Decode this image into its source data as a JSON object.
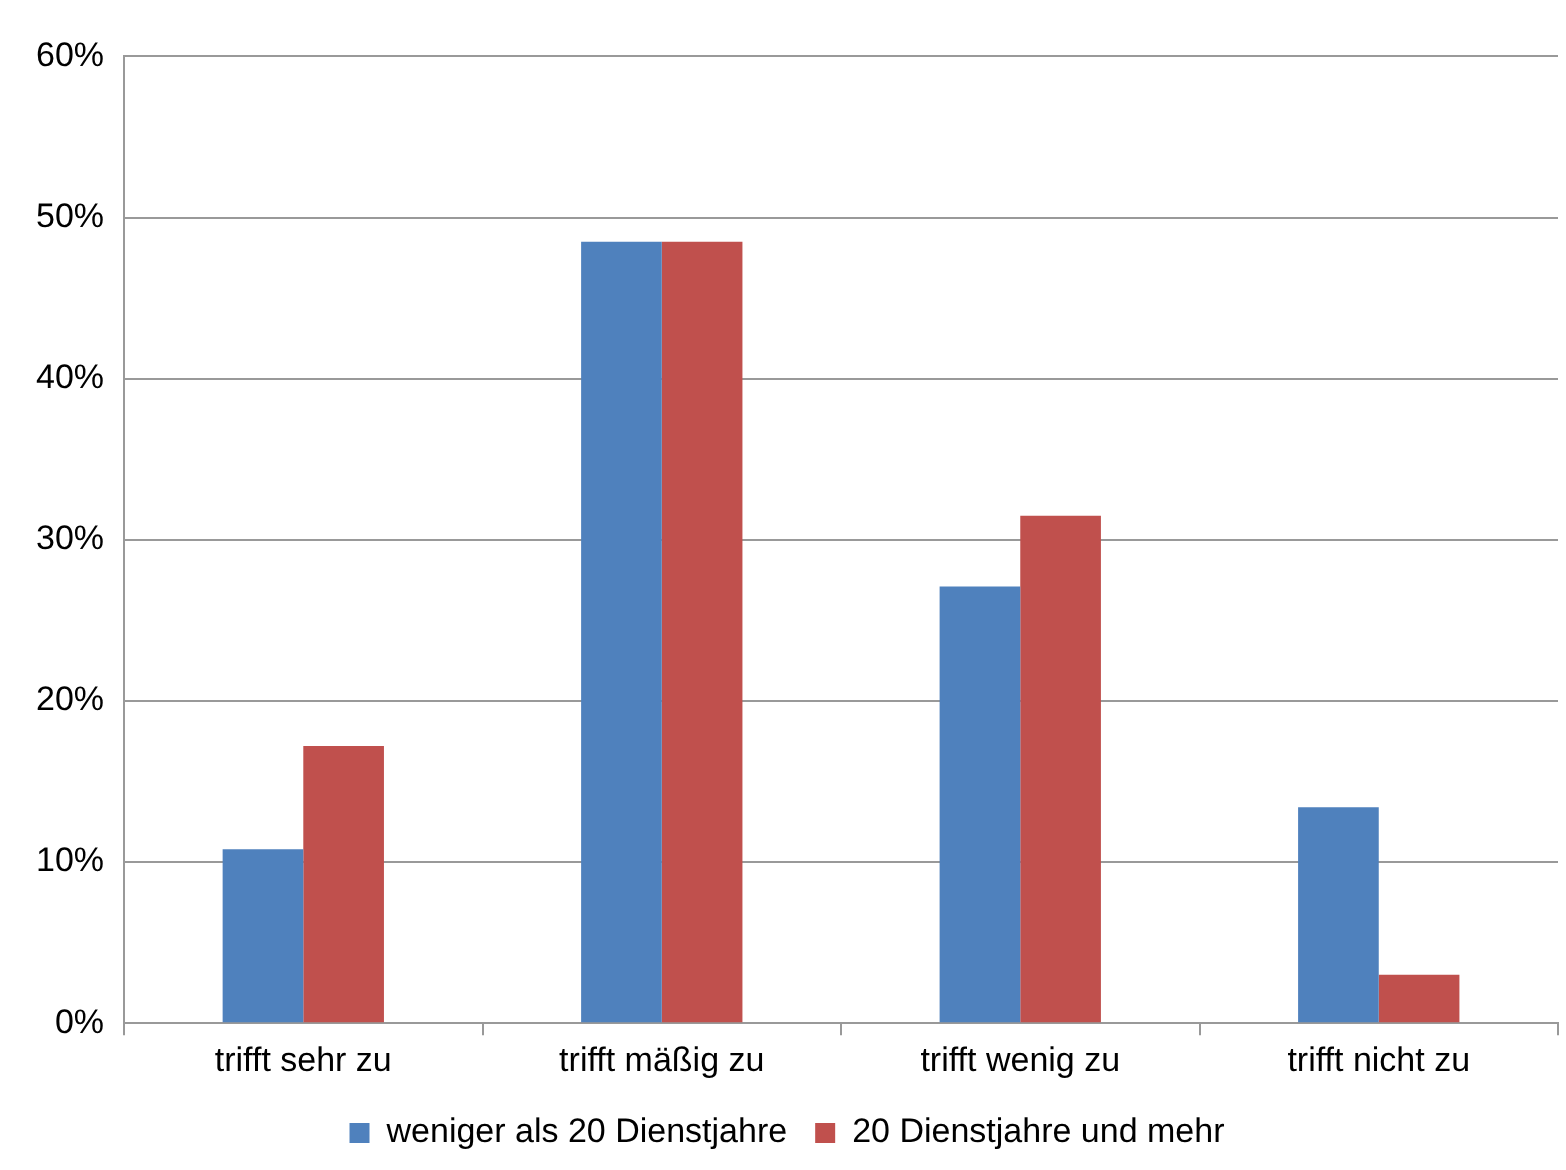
{
  "chart_data": {
    "type": "bar",
    "categories": [
      "trifft sehr zu",
      "trifft mäßig zu",
      "trifft wenig zu",
      "trifft nicht zu"
    ],
    "series": [
      {
        "name": "weniger als 20 Dienstjahre",
        "color": "#4f81bd",
        "values": [
          10.8,
          48.5,
          27.1,
          13.4
        ]
      },
      {
        "name": "20 Dienstjahre und mehr",
        "color": "#c0504d",
        "values": [
          17.2,
          48.5,
          31.5,
          3.0
        ]
      }
    ],
    "ylim": [
      0,
      60
    ],
    "yticks": [
      {
        "value": 0,
        "label": "0%"
      },
      {
        "value": 10,
        "label": "10%"
      },
      {
        "value": 20,
        "label": "20%"
      },
      {
        "value": 30,
        "label": "30%"
      },
      {
        "value": 40,
        "label": "40%"
      },
      {
        "value": 50,
        "label": "50%"
      },
      {
        "value": 60,
        "label": "60%"
      }
    ],
    "grid": "y",
    "legend": "bottom"
  }
}
